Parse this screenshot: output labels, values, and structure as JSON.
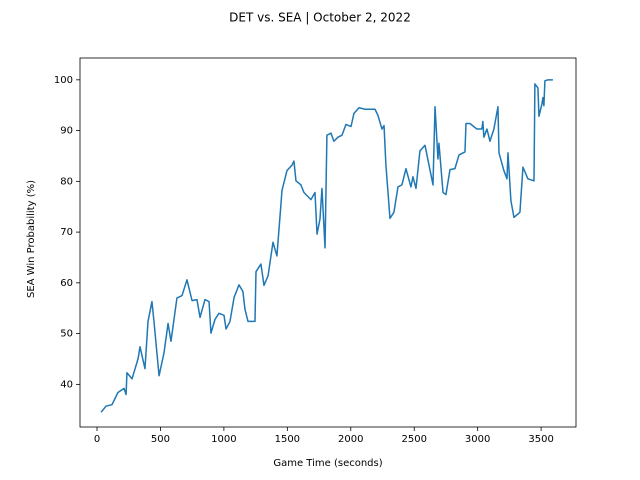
{
  "chart_data": {
    "type": "line",
    "title": "DET vs. SEA | October 2, 2022",
    "x_label": "Game Time (seconds)",
    "y_label": "SEA Win Probability (%)",
    "xlim": [
      -134,
      3775
    ],
    "ylim": [
      31.6,
      104.3
    ],
    "xticks": [
      0,
      500,
      1000,
      1500,
      2000,
      2500,
      3000,
      3500
    ],
    "yticks": [
      40,
      50,
      60,
      70,
      80,
      90,
      100
    ],
    "grid": false,
    "x": [
      32,
      71,
      118,
      165,
      213,
      229,
      236,
      276,
      323,
      339,
      378,
      402,
      433,
      449,
      489,
      528,
      560,
      583,
      630,
      670,
      709,
      749,
      788,
      812,
      851,
      883,
      898,
      930,
      961,
      1001,
      1017,
      1048,
      1080,
      1119,
      1150,
      1166,
      1190,
      1245,
      1253,
      1292,
      1316,
      1348,
      1387,
      1418,
      1458,
      1497,
      1537,
      1552,
      1568,
      1607,
      1631,
      1686,
      1718,
      1734,
      1757,
      1773,
      1797,
      1812,
      1844,
      1867,
      1899,
      1931,
      1962,
      2002,
      2025,
      2065,
      2112,
      2151,
      2191,
      2214,
      2246,
      2262,
      2277,
      2309,
      2340,
      2372,
      2403,
      2435,
      2474,
      2490,
      2514,
      2545,
      2585,
      2648,
      2664,
      2687,
      2695,
      2727,
      2750,
      2782,
      2821,
      2853,
      2900,
      2908,
      2939,
      2994,
      3033,
      3041,
      3049,
      3073,
      3097,
      3128,
      3160,
      3168,
      3207,
      3231,
      3239,
      3262,
      3286,
      3333,
      3357,
      3396,
      3444,
      3451,
      3475,
      3483,
      3507,
      3514,
      3522,
      3530,
      3554,
      3593
    ],
    "series": [
      {
        "color": "#1f77b4",
        "values": [
          34.5,
          35.7,
          36,
          38.4,
          39.2,
          38,
          42.3,
          41.1,
          45,
          47.4,
          43.1,
          52.4,
          56.3,
          52.4,
          41.7,
          46.2,
          52,
          48.5,
          57,
          57.5,
          60.6,
          56.5,
          56.7,
          53.2,
          56.7,
          56.3,
          50.1,
          52.8,
          54,
          53.6,
          50.9,
          52.4,
          57.1,
          59.6,
          58.3,
          54.8,
          52.4,
          52.4,
          62.2,
          63.7,
          59.5,
          61.4,
          68,
          65.3,
          78.2,
          82.1,
          83.2,
          84,
          80.1,
          79.3,
          77.8,
          76.4,
          77.8,
          69.6,
          72.5,
          78.6,
          66.9,
          89.1,
          89.5,
          87.9,
          88.7,
          89.1,
          91.2,
          90.8,
          93.4,
          94.5,
          94.2,
          94.2,
          94.2,
          93,
          90.3,
          91,
          83.2,
          72.7,
          73.9,
          78.9,
          79.3,
          82.5,
          78.9,
          80.9,
          78.6,
          86,
          87.1,
          79.3,
          94.7,
          84.4,
          87.5,
          77.8,
          77.4,
          82.3,
          82.5,
          85.2,
          85.8,
          91.4,
          91.4,
          90.3,
          90.3,
          91.8,
          88.7,
          90.3,
          87.9,
          90.3,
          94.7,
          85.6,
          82.1,
          80.5,
          85.6,
          76.2,
          72.9,
          73.9,
          82.8,
          80.5,
          80.1,
          99.2,
          98.4,
          92.8,
          95.3,
          96.5,
          94.9,
          99.8,
          100,
          100
        ]
      }
    ]
  }
}
